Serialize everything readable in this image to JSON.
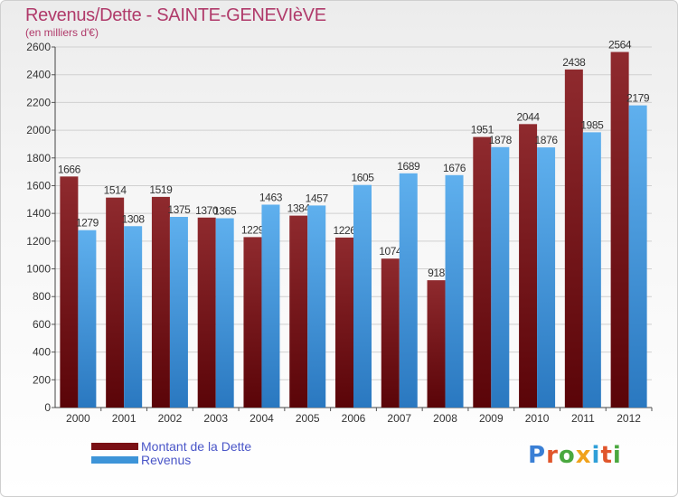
{
  "header": {
    "title": "Revenus/Dette - SAINTE-GENEVIèVE",
    "subtitle": "(en milliers d'€)"
  },
  "logo": {
    "text": "Proxiti",
    "letter_colors": [
      "#3a7fd5",
      "#e0552b",
      "#4aa83f",
      "#f0a21b",
      "#2f9fd8",
      "#e0552b",
      "#4aa83f"
    ]
  },
  "colors": {
    "dette": "#7a1015",
    "revenus": "#3d94d8"
  },
  "chart_data": {
    "type": "bar",
    "title": "Revenus/Dette - SAINTE-GENEVIèVE",
    "subtitle": "(en milliers d'€)",
    "categories": [
      "2000",
      "2001",
      "2002",
      "2003",
      "2004",
      "2005",
      "2006",
      "2007",
      "2008",
      "2009",
      "2010",
      "2011",
      "2012"
    ],
    "series": [
      {
        "name": "Montant de la Dette",
        "values": [
          1666,
          1514,
          1519,
          1370,
          1229,
          1384,
          1226,
          1074,
          918,
          1951,
          2044,
          2438,
          2564
        ]
      },
      {
        "name": "Revenus",
        "values": [
          1279,
          1308,
          1375,
          1365,
          1463,
          1457,
          1605,
          1689,
          1676,
          1878,
          1876,
          1985,
          2179
        ]
      }
    ],
    "data_labels": [
      [
        "1666",
        "1514",
        "1519",
        "1370",
        "1229",
        "1384",
        "1226",
        "1074",
        "918",
        "1951",
        "2044",
        "2438",
        "2564"
      ],
      [
        "1279",
        "1308",
        "1375",
        "1365",
        "1463",
        "1457",
        "1605",
        "1689",
        "1676",
        "1878",
        "1876",
        "1985",
        "2179"
      ]
    ],
    "yticks": [
      "0",
      "200",
      "400",
      "600",
      "800",
      "1000",
      "1200",
      "1400",
      "1600",
      "1800",
      "2000",
      "2200",
      "2400",
      "2600"
    ],
    "ylim": [
      0,
      2600
    ],
    "grid": true,
    "legend_position": "bottom-left"
  }
}
